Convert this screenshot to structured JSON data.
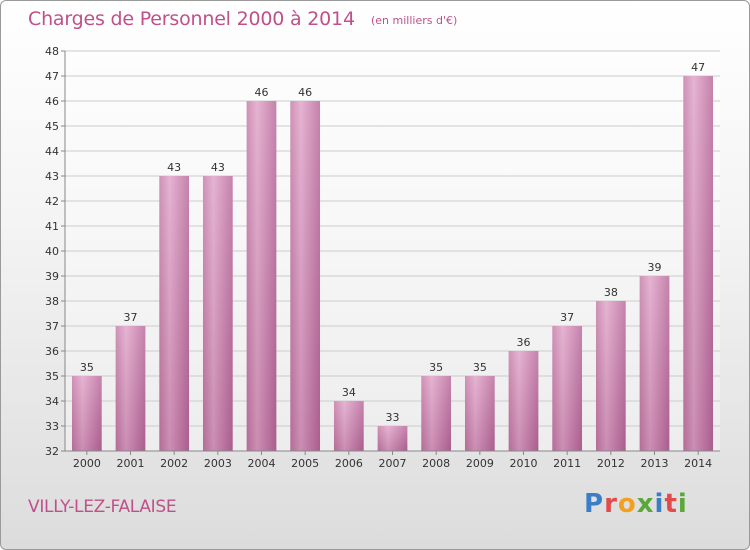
{
  "chart_data": {
    "type": "bar",
    "title": "Charges de Personnel 2000 à 2014",
    "subtitle": "(en milliers d'€)",
    "categories": [
      "2000",
      "2001",
      "2002",
      "2003",
      "2004",
      "2005",
      "2006",
      "2007",
      "2008",
      "2009",
      "2010",
      "2011",
      "2012",
      "2013",
      "2014"
    ],
    "values": [
      35,
      37,
      43,
      43,
      46,
      46,
      34,
      33,
      35,
      35,
      36,
      37,
      38,
      39,
      47
    ],
    "ylim": [
      32,
      48
    ],
    "yticks": [
      32,
      33,
      34,
      35,
      36,
      37,
      38,
      39,
      40,
      41,
      42,
      43,
      44,
      45,
      46,
      47,
      48
    ],
    "grid": true,
    "bar_color": "#d68fb8",
    "legend": "none"
  },
  "footer": {
    "town": "VILLY-LEZ-FALAISE",
    "logo_letters": [
      "P",
      "r",
      "o",
      "x",
      "i",
      "t",
      "i"
    ],
    "logo_colors": [
      "#3a7ec8",
      "#e04c4c",
      "#f2a020",
      "#5aa83a",
      "#3a7ec8",
      "#e04c4c",
      "#5aa83a"
    ]
  },
  "colors": {
    "accent": "#c0508a",
    "grid": "#cccccc",
    "axis": "#888888"
  }
}
